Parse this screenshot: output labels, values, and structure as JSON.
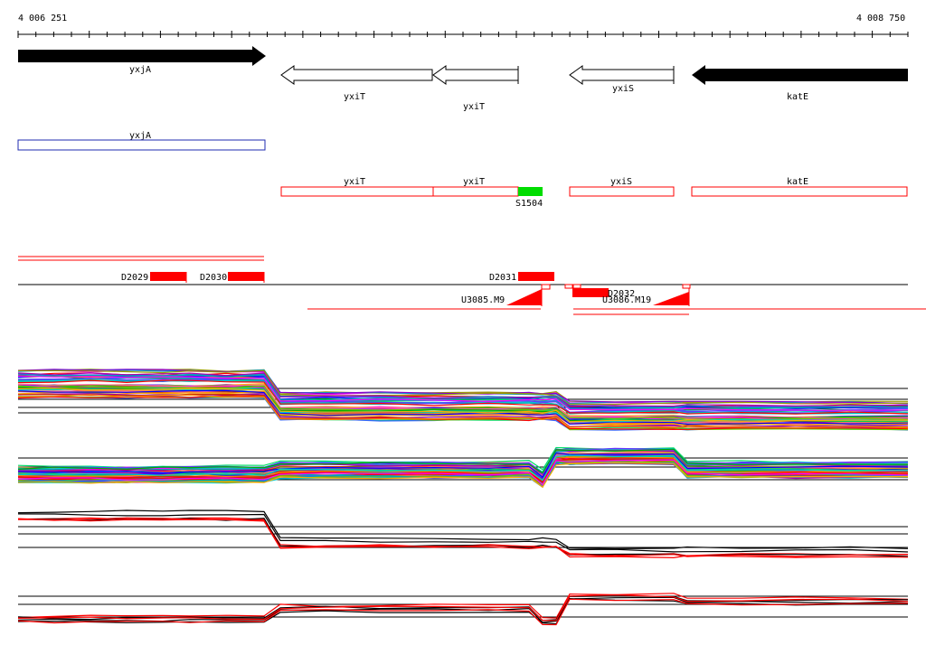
{
  "ruler": {
    "start_label": "4 006 251",
    "end_label": "4 008 750"
  },
  "colors": {
    "gene_fill": "#000000",
    "gene_open": "#ffffff",
    "blue_box": "#1f2bb0",
    "red": "#ff0000",
    "green": "#00dd00"
  },
  "genes": [
    {
      "label": "yxjA",
      "strand": "+",
      "fill": "filled"
    },
    {
      "label": "yxiT",
      "strand": "-",
      "fill": "open"
    },
    {
      "label": "yxiT",
      "strand": "-",
      "fill": "open"
    },
    {
      "label": "yxiS",
      "strand": "-",
      "fill": "open"
    },
    {
      "label": "katE",
      "strand": "-",
      "fill": "filled"
    }
  ],
  "annotation_boxes": [
    {
      "label": "yxjA",
      "color": "blue"
    },
    {
      "label": "yxiT",
      "color": "red"
    },
    {
      "label": "yxiT",
      "color": "red"
    },
    {
      "label": "yxiS",
      "color": "red"
    },
    {
      "label": "katE",
      "color": "red"
    }
  ],
  "segments": [
    {
      "label": "S1504",
      "color": "green"
    }
  ],
  "d_features": [
    {
      "label": "D2029"
    },
    {
      "label": "D2030"
    },
    {
      "label": "D2031"
    },
    {
      "label": "D2032"
    }
  ],
  "u_features": [
    {
      "label": "U3085.M9"
    },
    {
      "label": "U3086.M19"
    }
  ],
  "panels": [
    {
      "name": "panel-1-many-series"
    },
    {
      "name": "panel-2-many-series"
    },
    {
      "name": "panel-3-red-black"
    },
    {
      "name": "panel-4-red-black"
    }
  ]
}
